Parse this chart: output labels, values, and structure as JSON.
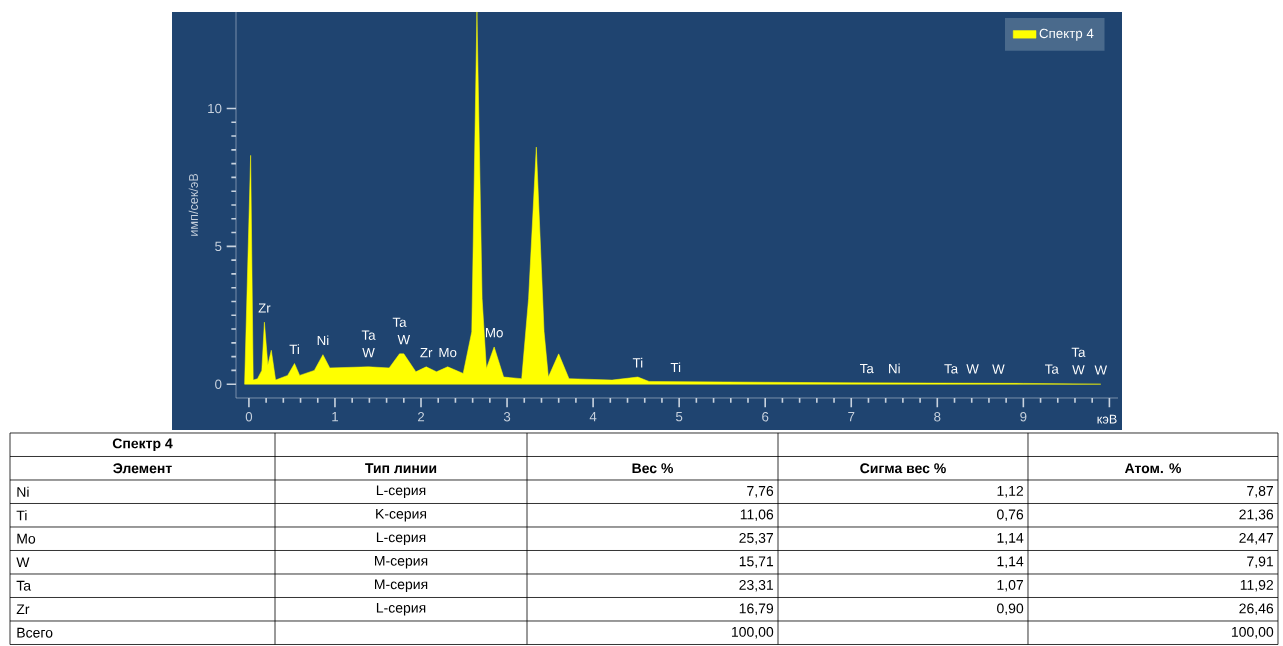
{
  "chart_data": [
    {
      "type": "area",
      "xlabel": "кэВ",
      "ylabel": "имп/сек/эВ",
      "xlim": [
        -0.15,
        10.1
      ],
      "ylim": [
        -0.5,
        13.5
      ],
      "xticks": [
        0,
        1,
        2,
        3,
        4,
        5,
        6,
        7,
        8,
        9,
        {
          "value": 10,
          "label": null
        }
      ],
      "yticks": [
        0,
        5,
        10
      ],
      "legend": "top right",
      "x": [
        -0.05,
        0.02,
        0.05,
        0.1,
        0.15,
        0.18,
        0.22,
        0.26,
        0.31,
        0.45,
        0.53,
        0.59,
        0.76,
        0.86,
        0.94,
        1.39,
        1.63,
        1.75,
        1.8,
        1.94,
        2.06,
        2.18,
        2.31,
        2.49,
        2.59,
        2.65,
        2.71,
        2.76,
        2.85,
        2.96,
        3.17,
        3.25,
        3.34,
        3.43,
        3.48,
        3.6,
        3.72,
        4.22,
        4.52,
        4.65,
        6.0,
        7.0,
        8.0,
        9.0,
        9.9
      ],
      "series": [
        {
          "name": "Спектр 4",
          "color": "#ffff00",
          "values": [
            0,
            8.3,
            0.15,
            0.2,
            0.5,
            2.25,
            0.7,
            1.23,
            0.15,
            0.32,
            0.75,
            0.32,
            0.5,
            1.07,
            0.59,
            0.63,
            0.59,
            1.1,
            1.1,
            0.45,
            0.63,
            0.45,
            0.63,
            0.39,
            1.9,
            13.5,
            3.1,
            0.57,
            1.35,
            0.26,
            0.2,
            3.1,
            8.6,
            1.9,
            0.26,
            1.1,
            0.2,
            0.15,
            0.26,
            0.1,
            0.07,
            0.05,
            0.04,
            0.03,
            0
          ]
        }
      ],
      "annotations": [
        {
          "text": "Zr",
          "x": 0.18,
          "y": 2.25
        },
        {
          "text": "Ti",
          "x": 0.53,
          "y": 0.75
        },
        {
          "text": "Ni",
          "x": 0.86,
          "y": 1.07
        },
        {
          "text": "W",
          "x": 1.39,
          "y": 0.63
        },
        {
          "text": "Ta",
          "x": 1.39,
          "y": 0.63
        },
        {
          "text": "W",
          "x": 1.8,
          "y": 1.1
        },
        {
          "text": "Ta",
          "x": 1.75,
          "y": 1.1
        },
        {
          "text": "Zr",
          "x": 2.06,
          "y": 0.63
        },
        {
          "text": "Mo",
          "x": 2.31,
          "y": 0.63
        },
        {
          "text": "Mo",
          "x": 2.85,
          "y": 1.35
        },
        {
          "text": "Ti",
          "x": 4.52,
          "y": 0.26
        },
        {
          "text": "Ti",
          "x": 4.96,
          "y": 0.09
        },
        {
          "text": "Ta",
          "x": 7.18,
          "y": 0.05
        },
        {
          "text": "Ni",
          "x": 7.5,
          "y": 0.05
        },
        {
          "text": "Ta",
          "x": 8.16,
          "y": 0.04
        },
        {
          "text": "W",
          "x": 8.41,
          "y": 0.04
        },
        {
          "text": "W",
          "x": 8.71,
          "y": 0.03
        },
        {
          "text": "Ta",
          "x": 9.33,
          "y": 0.03
        },
        {
          "text": "W",
          "x": 9.64,
          "y": 0.01
        },
        {
          "text": "Ta",
          "x": 9.64,
          "y": 0.01
        },
        {
          "text": "W",
          "x": 9.9,
          "y": 0
        }
      ]
    },
    {
      "type": "other",
      "title": "Спектр 4",
      "ylabel": "Элемент",
      "categories": [
        "Тип линии",
        "Вес %",
        "Сигма вес %",
        "Атом. %"
      ],
      "y_categories": [
        "Ni",
        "Ti",
        "Mo",
        "W",
        "Ta",
        "Zr",
        "Всего"
      ],
      "cell_labels": [
        [
          "L-серия",
          "7,76",
          "1,12",
          "7,87"
        ],
        [
          "K-серия",
          "11,06",
          "0,76",
          "21,36"
        ],
        [
          "L-серия",
          "25,37",
          "1,14",
          "24,47"
        ],
        [
          "M-серия",
          "15,71",
          "1,14",
          "7,91"
        ],
        [
          "M-серия",
          "23,31",
          "1,07",
          "11,92"
        ],
        [
          "L-серия",
          "16,79",
          "0,90",
          "26,46"
        ],
        [
          null,
          "100,00",
          null,
          "100,00"
        ]
      ]
    }
  ]
}
